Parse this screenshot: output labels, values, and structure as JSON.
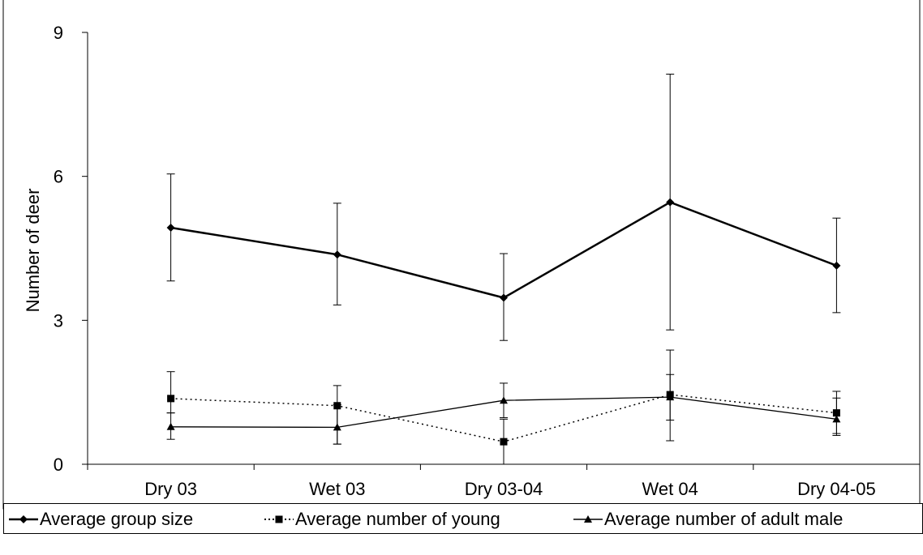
{
  "chart_data": {
    "type": "line",
    "ylabel": "Number of deer",
    "xlabel": "",
    "ylim": [
      0,
      9
    ],
    "yticks": [
      0,
      3,
      6,
      9
    ],
    "categories": [
      "Dry 03",
      "Wet 03",
      "Dry 03-04",
      "Wet 04",
      "Dry 04-05"
    ],
    "legend_position": "bottom",
    "grid": false,
    "series": [
      {
        "name": "Average group size",
        "marker": "diamond",
        "line_style": "solid-thick",
        "color": "#000000",
        "values": [
          4.93,
          4.37,
          3.47,
          5.46,
          4.14
        ],
        "error_low": [
          3.82,
          3.32,
          2.58,
          2.8,
          3.16
        ],
        "error_high": [
          6.05,
          5.44,
          4.39,
          8.13,
          5.13
        ]
      },
      {
        "name": "Average number of young",
        "marker": "square",
        "line_style": "dotted",
        "color": "#000000",
        "values": [
          1.37,
          1.22,
          0.47,
          1.45,
          1.07
        ],
        "error_low": [
          1.07,
          0.42,
          0.0,
          0.49,
          0.6
        ],
        "error_high": [
          1.93,
          1.64,
          0.94,
          2.38,
          1.52
        ]
      },
      {
        "name": "Average number of adult male",
        "marker": "triangle",
        "line_style": "solid-thin",
        "color": "#000000",
        "values": [
          0.78,
          0.77,
          1.33,
          1.4,
          0.94
        ],
        "error_low": [
          0.52,
          0.42,
          0.97,
          0.92,
          0.64
        ],
        "error_high": [
          1.07,
          1.24,
          1.69,
          1.87,
          1.38
        ]
      }
    ]
  }
}
